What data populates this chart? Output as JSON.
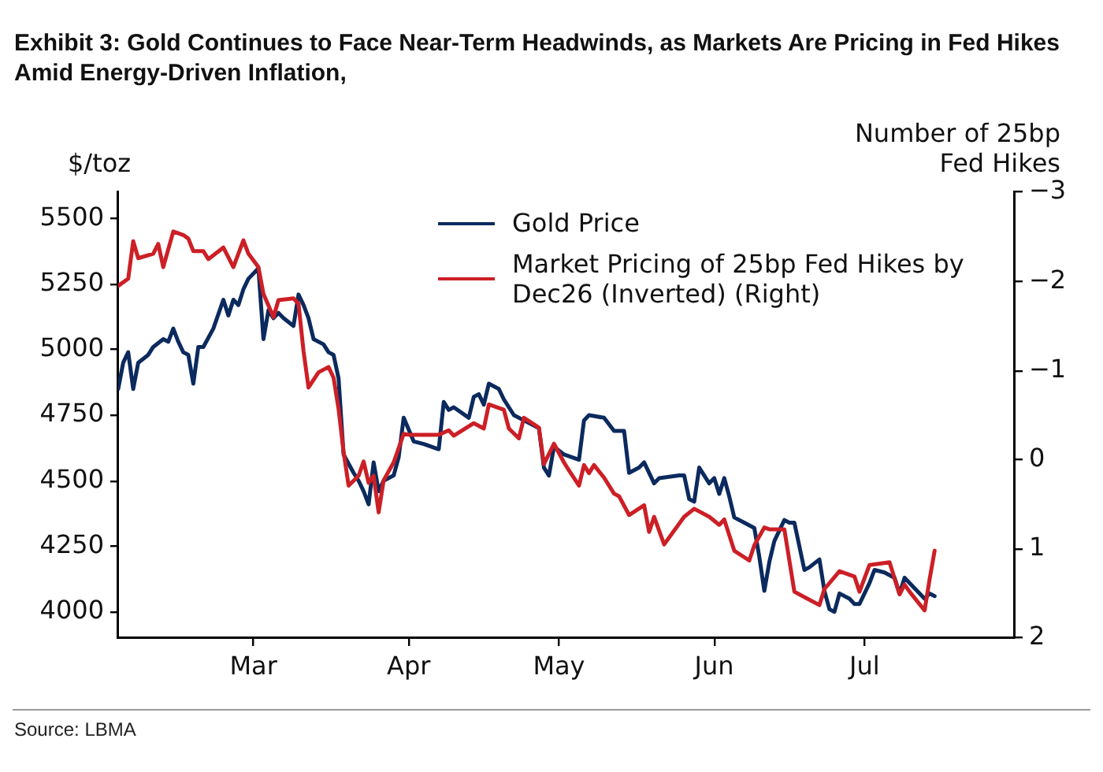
{
  "chart_data": {
    "type": "line",
    "title": "Exhibit 3: Gold Continues to Face Near-Term Headwinds, as Markets Are Pricing in Fed Hikes Amid Energy-Driven Inflation,",
    "ylabel": "$/toz",
    "y2label": "Number of 25bp Fed Hikes",
    "annotations": [
      "Source: LBMA"
    ],
    "xlim": [
      "--02-02",
      "--07-31"
    ],
    "xticks": [
      {
        "value": "--03-01",
        "label": "Mar"
      },
      {
        "value": "--04-01",
        "label": "Apr"
      },
      {
        "value": "--05-01",
        "label": "May"
      },
      {
        "value": "--06-01",
        "label": "Jun"
      },
      {
        "value": "--07-01",
        "label": "Jul"
      }
    ],
    "ylim": [
      3900,
      5600
    ],
    "yticks": [
      4000,
      4250,
      4500,
      4750,
      5000,
      5250,
      5500
    ],
    "y2lim": [
      2,
      -3
    ],
    "y2ticks": [
      {
        "value": -3,
        "label": "−3"
      },
      {
        "value": -2,
        "label": "−2"
      },
      {
        "value": -1,
        "label": "−1"
      },
      0,
      1,
      2
    ],
    "legend": "top right",
    "marker": "none",
    "line_style": "solid",
    "grid": false,
    "series": [
      {
        "name": "Gold Price",
        "color": "#0b2a5e",
        "x": [
          "--02-02",
          "--02-03",
          "--02-04",
          "--02-05",
          "--02-06",
          "--02-08",
          "--02-09",
          "--02-11",
          "--02-12",
          "--02-13",
          "--02-14",
          "--02-15",
          "--02-16",
          "--02-17",
          "--02-18",
          "--02-19",
          "--02-21",
          "--02-23",
          "--02-24",
          "--02-25",
          "--02-26",
          "--02-27",
          "--02-28",
          "--03-02",
          "--03-03",
          "--03-04",
          "--03-05",
          "--03-06",
          "--03-07",
          "--03-09",
          "--03-10",
          "--03-11",
          "--03-12",
          "--03-13",
          "--03-15",
          "--03-16",
          "--03-17",
          "--03-18",
          "--03-19",
          "--03-21",
          "--03-22",
          "--03-23",
          "--03-24",
          "--03-25",
          "--03-26",
          "--03-27",
          "--03-29",
          "--03-30",
          "--03-31",
          "--04-02",
          "--04-04",
          "--04-07",
          "--04-08",
          "--04-09",
          "--04-10",
          "--04-13",
          "--04-14",
          "--04-15",
          "--04-16",
          "--04-17",
          "--04-19",
          "--04-20",
          "--04-22",
          "--04-24",
          "--04-27",
          "--04-28",
          "--04-29",
          "--04-30",
          "--05-02",
          "--05-05",
          "--05-06",
          "--05-07",
          "--05-10",
          "--05-12",
          "--05-14",
          "--05-15",
          "--05-17",
          "--05-18",
          "--05-20",
          "--05-21",
          "--05-25",
          "--05-26",
          "--05-27",
          "--05-28",
          "--05-29",
          "--05-31",
          "--06-01",
          "--06-02",
          "--06-03",
          "--06-04",
          "--06-05",
          "--06-07",
          "--06-09",
          "--06-10",
          "--06-11",
          "--06-12",
          "--06-13",
          "--06-15",
          "--06-16",
          "--06-17",
          "--06-19",
          "--06-20",
          "--06-22",
          "--06-23",
          "--06-24",
          "--06-25",
          "--06-26",
          "--06-28",
          "--06-29",
          "--06-30",
          "--07-02",
          "--07-03",
          "--07-05",
          "--07-07",
          "--07-08",
          "--07-09",
          "--07-11",
          "--07-13",
          "--07-14",
          "--07-15"
        ],
        "values": [
          4850,
          4950,
          4990,
          4850,
          4950,
          4980,
          5010,
          5040,
          5030,
          5080,
          5030,
          4990,
          4980,
          4870,
          5010,
          5010,
          5080,
          5190,
          5130,
          5190,
          5170,
          5230,
          5270,
          5310,
          5040,
          5150,
          5120,
          5140,
          5120,
          5090,
          5210,
          5170,
          5120,
          5040,
          5020,
          4990,
          4980,
          4890,
          4600,
          4530,
          4500,
          4460,
          4410,
          4570,
          4460,
          4500,
          4520,
          4590,
          4740,
          4650,
          4640,
          4620,
          4800,
          4770,
          4780,
          4740,
          4820,
          4830,
          4790,
          4870,
          4850,
          4810,
          4750,
          4730,
          4700,
          4550,
          4520,
          4630,
          4600,
          4580,
          4730,
          4750,
          4740,
          4690,
          4690,
          4530,
          4550,
          4570,
          4490,
          4510,
          4520,
          4520,
          4430,
          4420,
          4550,
          4490,
          4510,
          4450,
          4510,
          4440,
          4360,
          4340,
          4320,
          4210,
          4080,
          4190,
          4270,
          4350,
          4340,
          4340,
          4160,
          4170,
          4200,
          4080,
          4010,
          4000,
          4070,
          4050,
          4030,
          4030,
          4110,
          4160,
          4150,
          4130,
          4070,
          4130,
          4090,
          4050,
          4070,
          4060
        ]
      },
      {
        "name": "Market Pricing of 25bp Fed Hikes by Dec26 (Inverted) (Right)",
        "color": "#cc1f26",
        "axis": "y2",
        "x": [
          "--02-02",
          "--02-04",
          "--02-05",
          "--02-06",
          "--02-09",
          "--02-10",
          "--02-11",
          "--02-13",
          "--02-15",
          "--02-16",
          "--02-17",
          "--02-19",
          "--02-20",
          "--02-23",
          "--02-25",
          "--02-27",
          "--02-28",
          "--03-02",
          "--03-03",
          "--03-05",
          "--03-06",
          "--03-09",
          "--03-10",
          "--03-11",
          "--03-12",
          "--03-14",
          "--03-16",
          "--03-17",
          "--03-18",
          "--03-19",
          "--03-20",
          "--03-22",
          "--03-23",
          "--03-24",
          "--03-25",
          "--03-26",
          "--03-27",
          "--03-29",
          "--03-31",
          "--04-01",
          "--04-07",
          "--04-09",
          "--04-10",
          "--04-14",
          "--04-16",
          "--04-17",
          "--04-20",
          "--04-21",
          "--04-23",
          "--04-24",
          "--04-27",
          "--04-28",
          "--04-30",
          "--05-02",
          "--05-03",
          "--05-05",
          "--05-06",
          "--05-07",
          "--05-08",
          "--05-10",
          "--05-12",
          "--05-13",
          "--05-15",
          "--05-18",
          "--05-19",
          "--05-20",
          "--05-22",
          "--05-26",
          "--05-28",
          "--05-31",
          "--06-02",
          "--06-03",
          "--06-05",
          "--06-08",
          "--06-09",
          "--06-11",
          "--06-12",
          "--06-15",
          "--06-17",
          "--06-19",
          "--06-22",
          "--06-23",
          "--06-26",
          "--06-29",
          "--06-30",
          "--07-02",
          "--07-06",
          "--07-08",
          "--07-09",
          "--07-10",
          "--07-13",
          "--07-14",
          "--07-15"
        ],
        "values": [
          -1.95,
          -2.03,
          -2.45,
          -2.26,
          -2.31,
          -2.42,
          -2.16,
          -2.56,
          -2.52,
          -2.48,
          -2.34,
          -2.34,
          -2.25,
          -2.38,
          -2.16,
          -2.46,
          -2.31,
          -2.16,
          -1.86,
          -1.6,
          -1.79,
          -1.81,
          -1.75,
          -1.22,
          -0.81,
          -0.98,
          -1.04,
          -0.92,
          -0.57,
          -0.09,
          0.29,
          0.18,
          0.02,
          0.26,
          0.18,
          0.59,
          0.23,
          0.03,
          -0.29,
          -0.28,
          -0.28,
          -0.33,
          -0.27,
          -0.41,
          -0.35,
          -0.62,
          -0.56,
          -0.35,
          -0.24,
          -0.47,
          -0.36,
          0.05,
          -0.18,
          0.03,
          0.12,
          0.29,
          0.06,
          0.15,
          0.06,
          0.2,
          0.38,
          0.41,
          0.62,
          0.51,
          0.81,
          0.64,
          0.95,
          0.64,
          0.55,
          0.64,
          0.73,
          0.67,
          1.02,
          1.13,
          0.96,
          0.76,
          0.78,
          0.78,
          1.48,
          1.54,
          1.63,
          1.45,
          1.25,
          1.31,
          1.48,
          1.18,
          1.15,
          1.51,
          1.4,
          1.48,
          1.69,
          1.34,
          1.02
        ]
      }
    ]
  }
}
